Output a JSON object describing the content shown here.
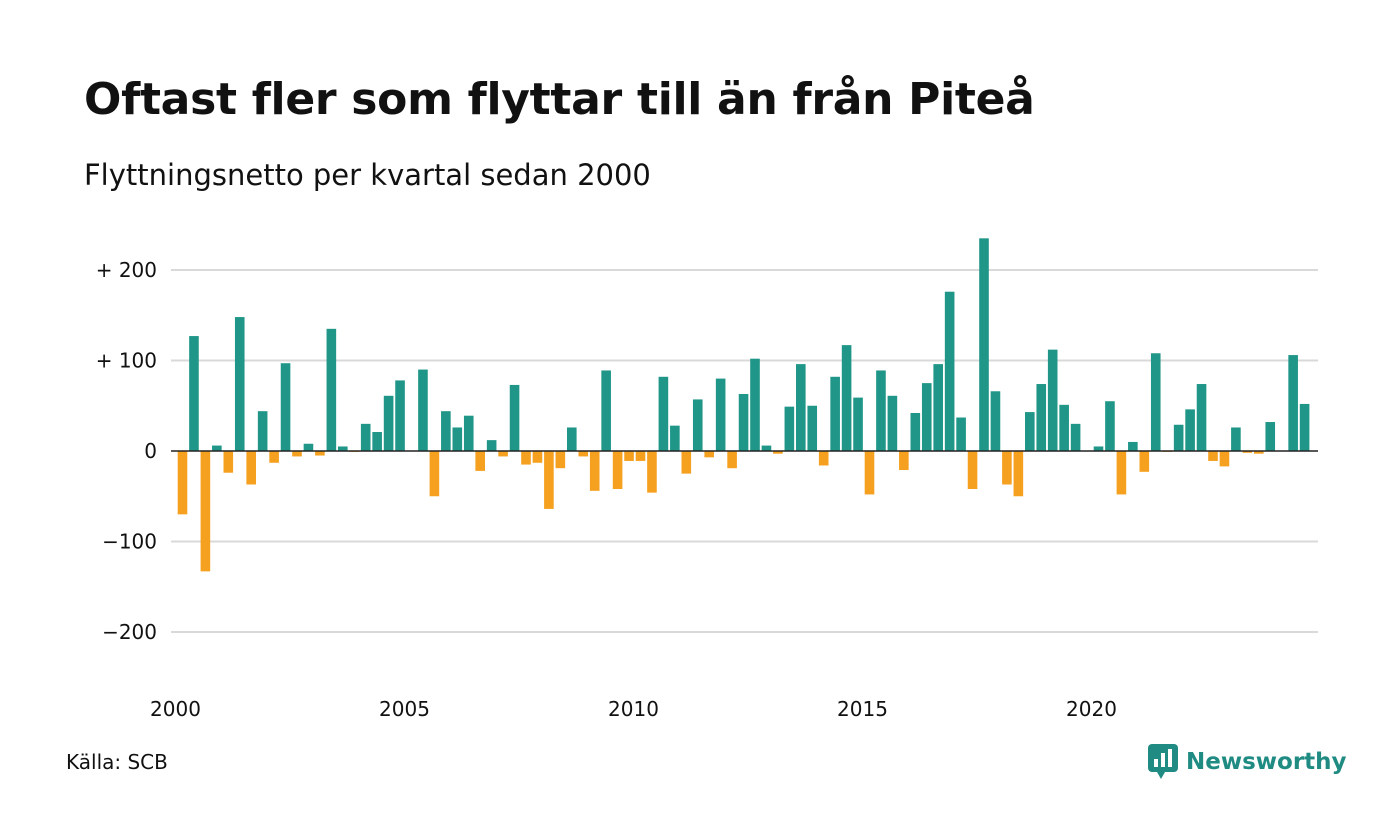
{
  "title": "Oftast fler som flyttar till än från Piteå",
  "subtitle": "Flyttningsnetto per kvartal sedan 2000",
  "source": "Källa: SCB",
  "brand": {
    "name": "Newsworthy",
    "icon": "newsworthy-logo-icon"
  },
  "colors": {
    "positive": "#1f9688",
    "negative": "#f5a01f",
    "grid": "#d9d9d9",
    "baseline": "#222222"
  },
  "chart_data": {
    "type": "bar",
    "x_start": "2000 Q1",
    "y_tick_values": [
      200,
      100,
      0,
      -100,
      -200
    ],
    "y_tick_labels": [
      "+ 200",
      "+ 100",
      "0",
      "−100",
      "−200"
    ],
    "x_tick_labels": [
      "2000",
      "2005",
      "2010",
      "2015",
      "2020"
    ],
    "ylim": [
      -240,
      240
    ],
    "grid": true,
    "legend": "none",
    "values": [
      -70,
      127,
      -133,
      6,
      -24,
      148,
      -37,
      44,
      -13,
      97,
      -6,
      8,
      -5,
      135,
      5,
      -1,
      30,
      21,
      61,
      78,
      0,
      90,
      -50,
      44,
      26,
      39,
      -22,
      12,
      -6,
      73,
      -15,
      -13,
      -64,
      -19,
      26,
      -6,
      -44,
      89,
      -42,
      -11,
      -11,
      -46,
      82,
      28,
      -25,
      57,
      -7,
      80,
      -19,
      63,
      102,
      6,
      -3,
      49,
      96,
      50,
      -16,
      82,
      117,
      59,
      -48,
      89,
      61,
      -21,
      42,
      75,
      96,
      176,
      37,
      -42,
      235,
      66,
      -37,
      -50,
      43,
      74,
      112,
      51,
      30,
      0,
      5,
      55,
      -48,
      10,
      -23,
      108,
      -1,
      29,
      46,
      74,
      -11,
      -17,
      26,
      -2,
      -3,
      32,
      0,
      106,
      52
    ]
  }
}
